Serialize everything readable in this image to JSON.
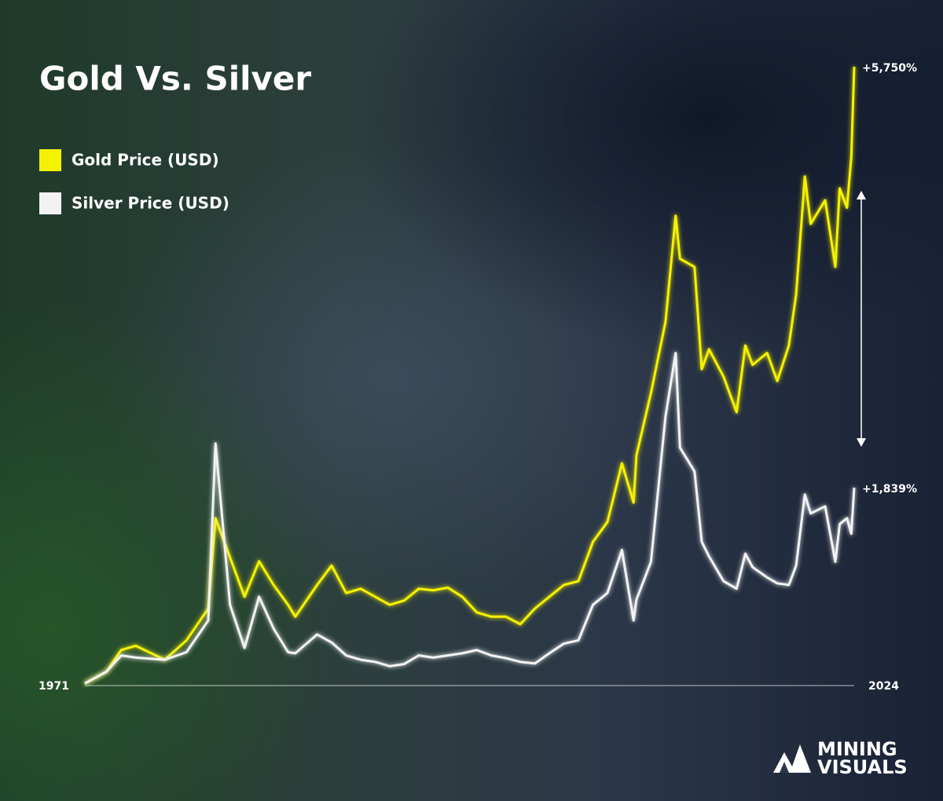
{
  "chart_data": {
    "type": "line",
    "title": "Gold Vs. Silver",
    "x": [
      1971,
      1972.5,
      1973.5,
      1974.5,
      1976.5,
      1978,
      1979.5,
      1980,
      1981,
      1982,
      1983,
      1984,
      1985,
      1985.5,
      1987,
      1988,
      1989,
      1990,
      1991,
      1992,
      1993,
      1994,
      1995,
      1996,
      1997,
      1998,
      1999,
      2000,
      2001,
      2002,
      2003,
      2004,
      2005,
      2006,
      2007,
      2008,
      2008.8,
      2009,
      2010,
      2011,
      2011.7,
      2012,
      2013,
      2013.5,
      2014,
      2015,
      2015.9,
      2016.5,
      2017,
      2018,
      2018.7,
      2019.5,
      2020,
      2020.6,
      2021,
      2022,
      2022.7,
      2023,
      2023.5,
      2023.8,
      2024
    ],
    "series": [
      {
        "name": "Gold Price (USD)",
        "color": "#f5f200",
        "values": [
          20,
          130,
          330,
          370,
          240,
          420,
          715,
          1555,
          1190,
          825,
          1155,
          935,
          750,
          640,
          935,
          1115,
          860,
          900,
          825,
          750,
          790,
          900,
          885,
          910,
          825,
          680,
          640,
          640,
          570,
          715,
          825,
          935,
          970,
          1335,
          1520,
          2065,
          1700,
          2140,
          2720,
          3380,
          4365,
          3965,
          3890,
          2940,
          3125,
          2870,
          2540,
          3160,
          2980,
          3090,
          2830,
          3160,
          3635,
          4730,
          4290,
          4510,
          3890,
          4620,
          4440,
          4910,
          5750
        ],
        "value_labels": [
          null,
          null,
          null,
          null,
          null,
          null,
          null,
          null,
          null,
          null,
          null,
          null,
          null,
          null,
          null,
          null,
          null,
          null,
          null,
          null,
          null,
          null,
          null,
          null,
          null,
          null,
          null,
          null,
          null,
          null,
          null,
          null,
          null,
          null,
          null,
          null,
          null,
          null,
          null,
          null,
          null,
          null,
          null,
          null,
          null,
          null,
          null,
          null,
          null,
          null,
          null,
          null,
          null,
          null,
          null,
          null,
          null,
          null,
          null,
          null,
          "+5,750%"
        ]
      },
      {
        "name": "Silver Price (USD)",
        "color": "#f2f2f2",
        "values": [
          20,
          130,
          280,
          260,
          240,
          310,
          605,
          2250,
          750,
          350,
          825,
          530,
          310,
          300,
          475,
          400,
          280,
          240,
          220,
          180,
          200,
          280,
          260,
          280,
          300,
          330,
          280,
          255,
          220,
          205,
          300,
          390,
          420,
          750,
          860,
          1260,
          605,
          800,
          1150,
          2500,
          3090,
          2210,
          1990,
          1335,
          1200,
          970,
          900,
          1225,
          1100,
          1005,
          950,
          935,
          1115,
          1775,
          1600,
          1665,
          1150,
          1500,
          1555,
          1410,
          1839
        ],
        "value_labels": [
          null,
          null,
          null,
          null,
          null,
          null,
          null,
          null,
          null,
          null,
          null,
          null,
          null,
          null,
          null,
          null,
          null,
          null,
          null,
          null,
          null,
          null,
          null,
          null,
          null,
          null,
          null,
          null,
          null,
          null,
          null,
          null,
          null,
          null,
          null,
          null,
          null,
          null,
          null,
          null,
          null,
          null,
          null,
          null,
          null,
          null,
          null,
          null,
          null,
          null,
          null,
          null,
          null,
          null,
          null,
          null,
          null,
          null,
          null,
          null,
          "+1,839%"
        ]
      }
    ],
    "xlim": [
      1971,
      2024
    ],
    "xticks": [
      1971,
      2024
    ],
    "ylim": [
      0,
      5750
    ],
    "legend": "top-left",
    "brand": [
      "MINING",
      "VISUALS"
    ]
  }
}
